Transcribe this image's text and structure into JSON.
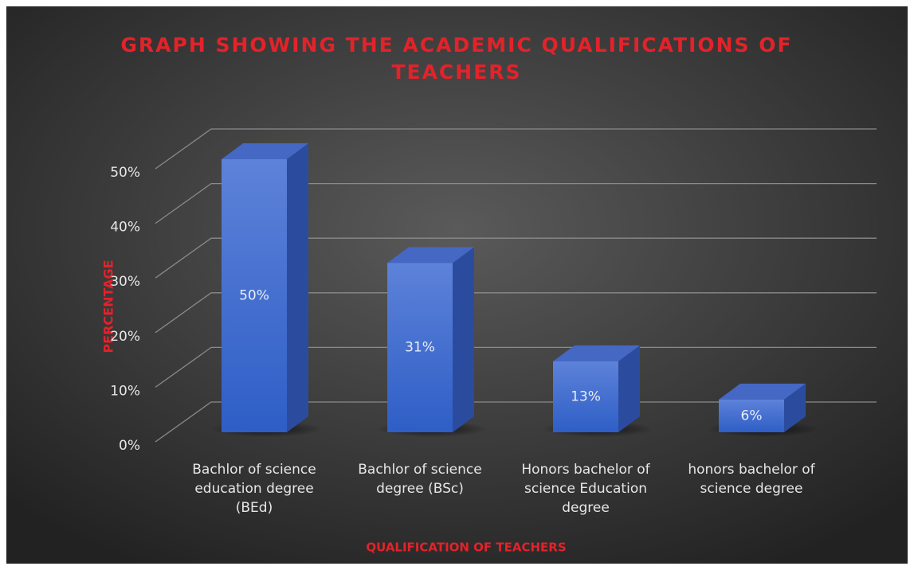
{
  "chart_data": {
    "type": "bar3d",
    "title": "GRAPH SHOWING THE ACADEMIC QUALIFICATIONS OF TEACHERS",
    "x_label": "QUALIFICATION OF TEACHERS",
    "y_label": "PERCENTAGE",
    "categories": [
      "Bachlor of science education degree (BEd)",
      "Bachlor of science degree (BSc)",
      "Honors bachelor of science Education degree",
      "honors bachelor of science degree"
    ],
    "values": [
      50,
      31,
      13,
      6
    ],
    "value_labels": [
      "50%",
      "31%",
      "13%",
      "6%"
    ],
    "color": "#3d68cf",
    "ylim": [
      0,
      50
    ],
    "yticks": [
      {
        "value": 0,
        "label": "0%"
      },
      {
        "value": 10,
        "label": "10%"
      },
      {
        "value": 20,
        "label": "20%"
      },
      {
        "value": 30,
        "label": "30%"
      },
      {
        "value": 40,
        "label": "40%"
      },
      {
        "value": 50,
        "label": "50%"
      }
    ],
    "grid": true
  }
}
